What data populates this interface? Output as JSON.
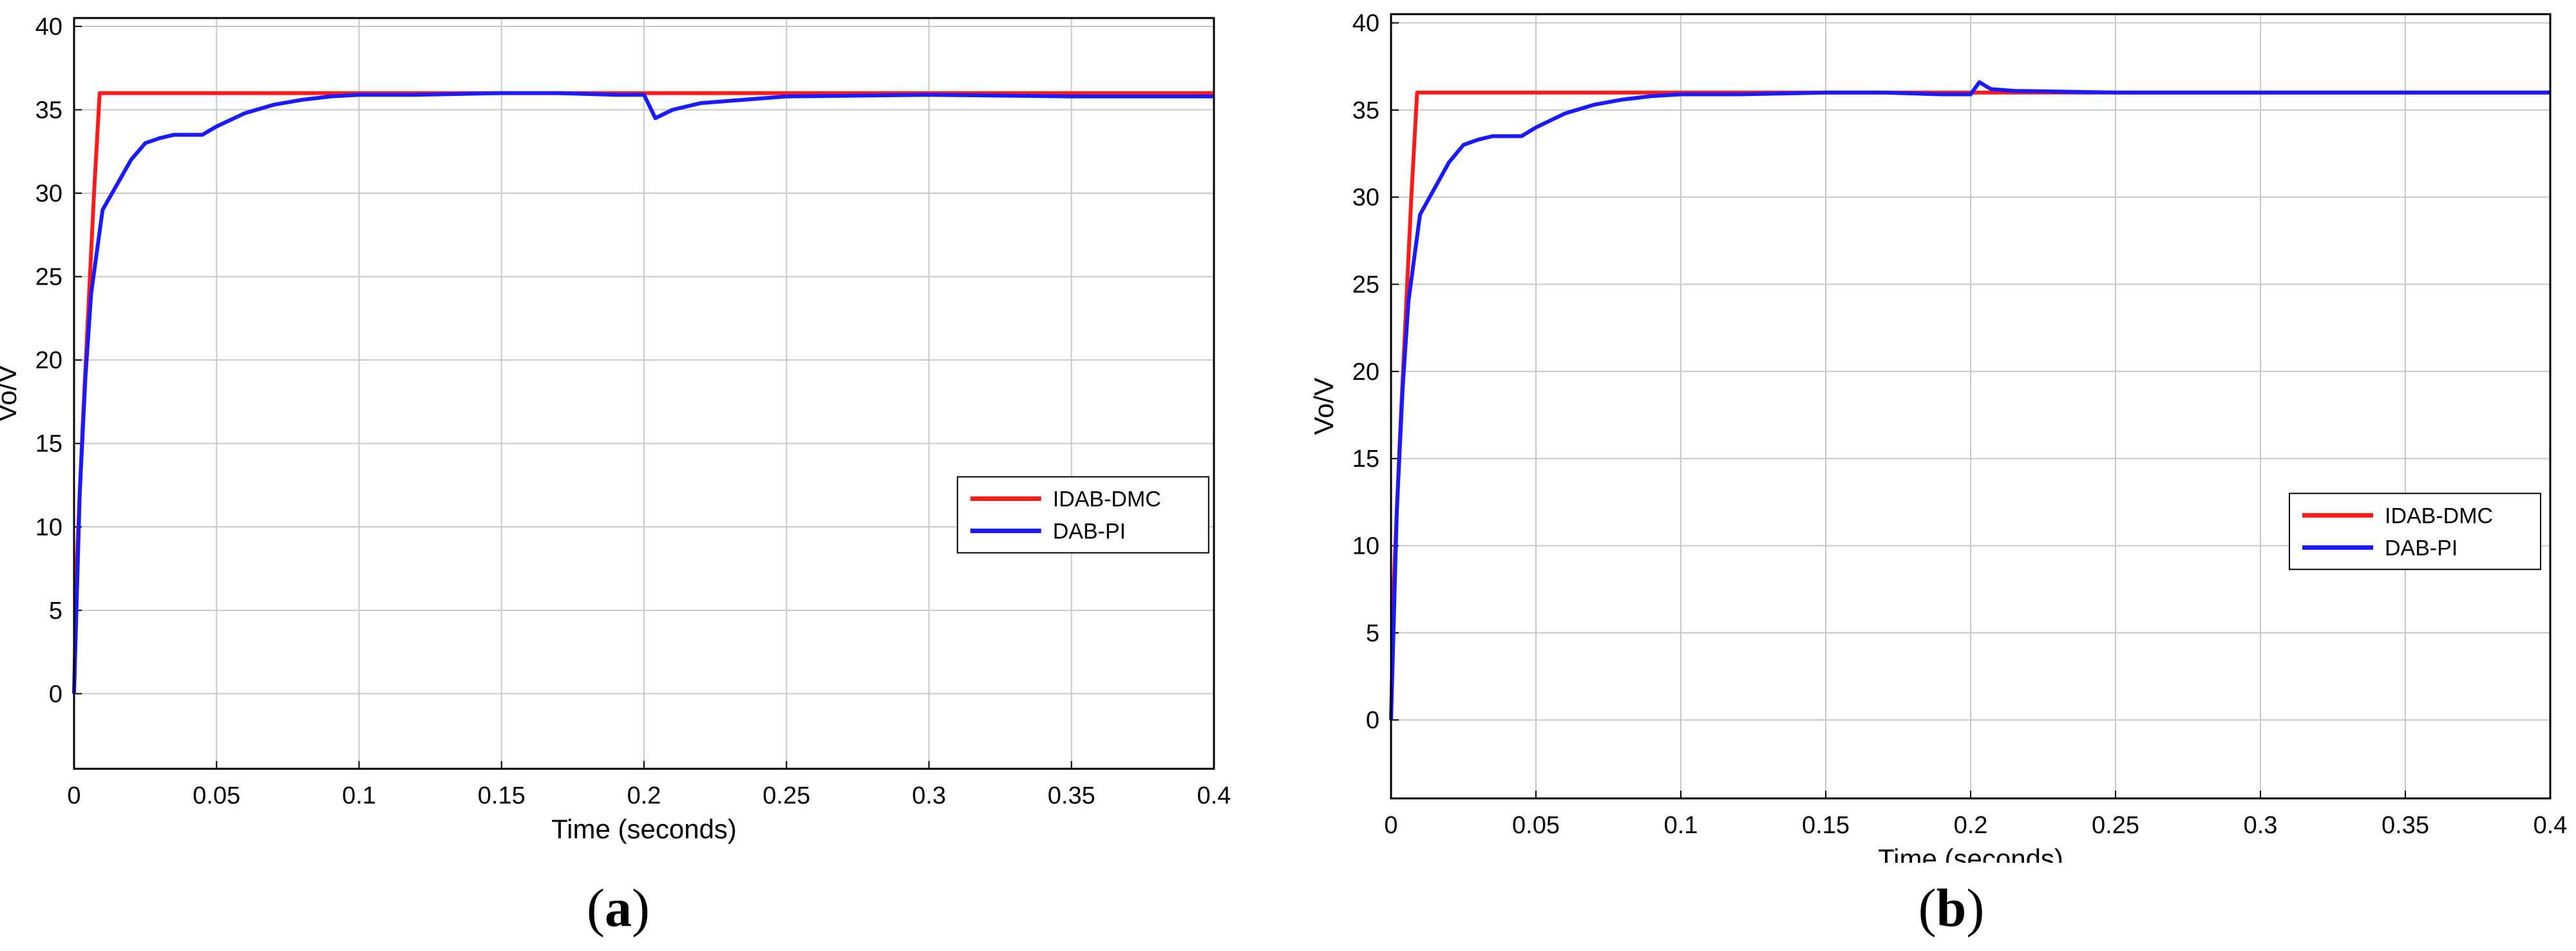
{
  "colors": {
    "IDAB-DMC": "#ff1a1a",
    "DAB-PI": "#1a1aff",
    "grid": "#c8c8c8",
    "axis": "#000000"
  },
  "chart_data": [
    {
      "type": "line",
      "panel_label": "a",
      "xlabel": "Time (seconds)",
      "ylabel": "Vo/V",
      "xlim": [
        0,
        0.4
      ],
      "ylim": [
        -4.5,
        40.5
      ],
      "x_ticks": [
        "0",
        "0.05",
        "0.1",
        "0.15",
        "0.2",
        "0.25",
        "0.3",
        "0.35",
        "0.4"
      ],
      "y_ticks": [
        "0",
        "5",
        "10",
        "15",
        "20",
        "25",
        "30",
        "35",
        "40"
      ],
      "grid": true,
      "legend_position": "bottom-right",
      "series": [
        {
          "name": "IDAB-DMC",
          "x": [
            0,
            0.001,
            0.003,
            0.005,
            0.007,
            0.009,
            0.4
          ],
          "y": [
            0,
            8,
            16,
            23,
            30,
            36,
            36
          ]
        },
        {
          "name": "DAB-PI",
          "x": [
            0,
            0.002,
            0.004,
            0.006,
            0.01,
            0.015,
            0.02,
            0.025,
            0.03,
            0.035,
            0.04,
            0.045,
            0.05,
            0.06,
            0.07,
            0.08,
            0.09,
            0.1,
            0.12,
            0.15,
            0.17,
            0.19,
            0.2,
            0.204,
            0.21,
            0.22,
            0.25,
            0.3,
            0.35,
            0.4
          ],
          "y": [
            0,
            12,
            19,
            24,
            29,
            30.5,
            32,
            33,
            33.3,
            33.5,
            33.5,
            33.5,
            34,
            34.8,
            35.3,
            35.6,
            35.8,
            35.9,
            35.9,
            36,
            36,
            35.9,
            35.9,
            34.5,
            35,
            35.4,
            35.8,
            35.9,
            35.8,
            35.8
          ]
        }
      ]
    },
    {
      "type": "line",
      "panel_label": "b",
      "xlabel": "Time (seconds)",
      "ylabel": "Vo/V",
      "xlim": [
        0,
        0.4
      ],
      "ylim": [
        -4.5,
        40.5
      ],
      "x_ticks": [
        "0",
        "0.05",
        "0.1",
        "0.15",
        "0.2",
        "0.25",
        "0.3",
        "0.35",
        "0.4"
      ],
      "y_ticks": [
        "0",
        "5",
        "10",
        "15",
        "20",
        "25",
        "30",
        "35",
        "40"
      ],
      "grid": true,
      "legend_position": "bottom-right",
      "series": [
        {
          "name": "IDAB-DMC",
          "x": [
            0,
            0.001,
            0.003,
            0.005,
            0.007,
            0.009,
            0.4
          ],
          "y": [
            0,
            8,
            16,
            23,
            30,
            36,
            36
          ]
        },
        {
          "name": "DAB-PI",
          "x": [
            0,
            0.002,
            0.004,
            0.006,
            0.01,
            0.015,
            0.02,
            0.025,
            0.03,
            0.035,
            0.04,
            0.045,
            0.05,
            0.06,
            0.07,
            0.08,
            0.09,
            0.1,
            0.12,
            0.15,
            0.17,
            0.19,
            0.2,
            0.203,
            0.207,
            0.215,
            0.25,
            0.3,
            0.35,
            0.4
          ],
          "y": [
            0,
            12,
            19,
            24,
            29,
            30.5,
            32,
            33,
            33.3,
            33.5,
            33.5,
            33.5,
            34,
            34.8,
            35.3,
            35.6,
            35.8,
            35.9,
            35.9,
            36,
            36,
            35.9,
            35.9,
            36.6,
            36.2,
            36.1,
            36,
            36,
            36,
            36
          ]
        }
      ]
    }
  ]
}
